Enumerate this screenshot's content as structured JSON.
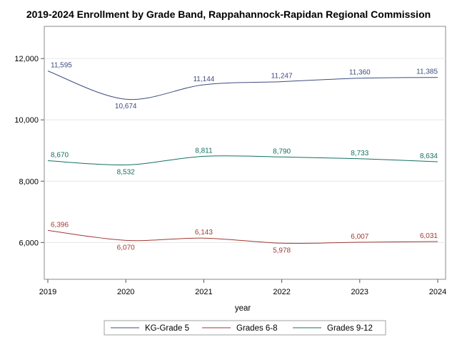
{
  "chart_data": {
    "type": "line",
    "title": "2019-2024 Enrollment by Grade Band, Rappahannock-Rapidan Regional Commission",
    "xlabel": "year",
    "ylabel": "",
    "x": [
      2019,
      2020,
      2021,
      2022,
      2023,
      2024
    ],
    "xticks": [
      "2019",
      "2020",
      "2021",
      "2022",
      "2023",
      "2024"
    ],
    "yticks": [
      6000,
      8000,
      10000,
      12000
    ],
    "ytick_labels": [
      "6,000",
      "8,000",
      "10,000",
      "12,000"
    ],
    "ylim": [
      4800,
      13050
    ],
    "grid": "horizontal",
    "legend_position": "bottom",
    "series": [
      {
        "name": "KG-Grade 5",
        "color": "#3d4c80",
        "values": [
          11595,
          10674,
          11144,
          11247,
          11360,
          11385
        ],
        "labels": [
          "11,595",
          "10,674",
          "11,144",
          "11,247",
          "11,360",
          "11,385"
        ]
      },
      {
        "name": "Grades 6-8",
        "color": "#9e3a35",
        "values": [
          6396,
          6070,
          6143,
          5978,
          6007,
          6031
        ],
        "labels": [
          "6,396",
          "6,070",
          "6,143",
          "5,978",
          "6,007",
          "6,031"
        ]
      },
      {
        "name": "Grades 9-12",
        "color": "#137060",
        "values": [
          8670,
          8532,
          8811,
          8790,
          8733,
          8634
        ],
        "labels": [
          "8,670",
          "8,532",
          "8,811",
          "8,790",
          "8,733",
          "8,634"
        ]
      }
    ]
  }
}
